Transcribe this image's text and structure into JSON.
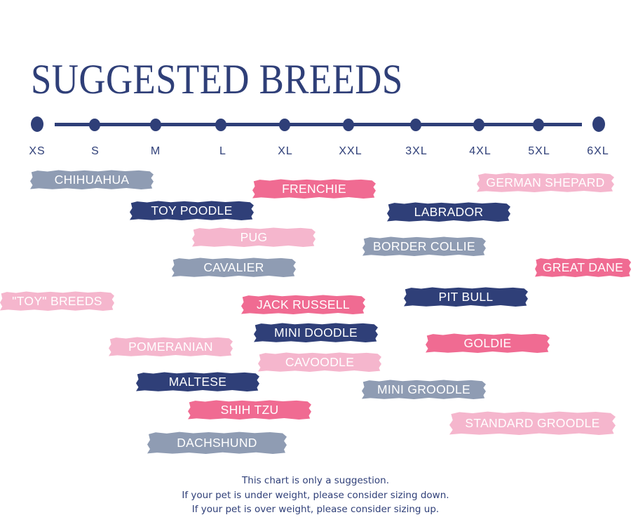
{
  "title": "SUGGESTED BREEDS",
  "sizes": [
    "XS",
    "S",
    "M",
    "L",
    "XL",
    "XXL",
    "3XL",
    "4XL",
    "5XL",
    "6XL"
  ],
  "colors": {
    "navy": "#2f3f78",
    "grey": "#8f9cb3",
    "light_pink": "#f5b6cd",
    "rose": "#f06b92"
  },
  "breeds": [
    {
      "label": "CHIHUAHUA",
      "color": "grey"
    },
    {
      "label": "FRENCHIE",
      "color": "rose"
    },
    {
      "label": "GERMAN SHEPARD",
      "color": "light_pink"
    },
    {
      "label": "TOY POODLE",
      "color": "navy"
    },
    {
      "label": "LABRADOR",
      "color": "navy"
    },
    {
      "label": "PUG",
      "color": "light_pink"
    },
    {
      "label": "BORDER COLLIE",
      "color": "grey"
    },
    {
      "label": "CAVALIER",
      "color": "grey"
    },
    {
      "label": "GREAT DANE",
      "color": "rose"
    },
    {
      "label": "\"TOY\" BREEDS",
      "color": "light_pink"
    },
    {
      "label": "JACK RUSSELL",
      "color": "rose"
    },
    {
      "label": "PIT BULL",
      "color": "navy"
    },
    {
      "label": "MINI DOODLE",
      "color": "navy"
    },
    {
      "label": "POMERANIAN",
      "color": "light_pink"
    },
    {
      "label": "GOLDIE",
      "color": "rose"
    },
    {
      "label": "CAVOODLE",
      "color": "light_pink"
    },
    {
      "label": "MALTESE",
      "color": "navy"
    },
    {
      "label": "MINI GROODLE",
      "color": "grey"
    },
    {
      "label": "SHIH TZU",
      "color": "rose"
    },
    {
      "label": "STANDARD GROODLE",
      "color": "light_pink"
    },
    {
      "label": "DACHSHUND",
      "color": "grey"
    }
  ],
  "footer": {
    "line1": "This chart is only a suggestion.",
    "line2": "If your pet is under weight, please consider sizing down.",
    "line3": "If your pet is over weight, please consider sizing up."
  }
}
